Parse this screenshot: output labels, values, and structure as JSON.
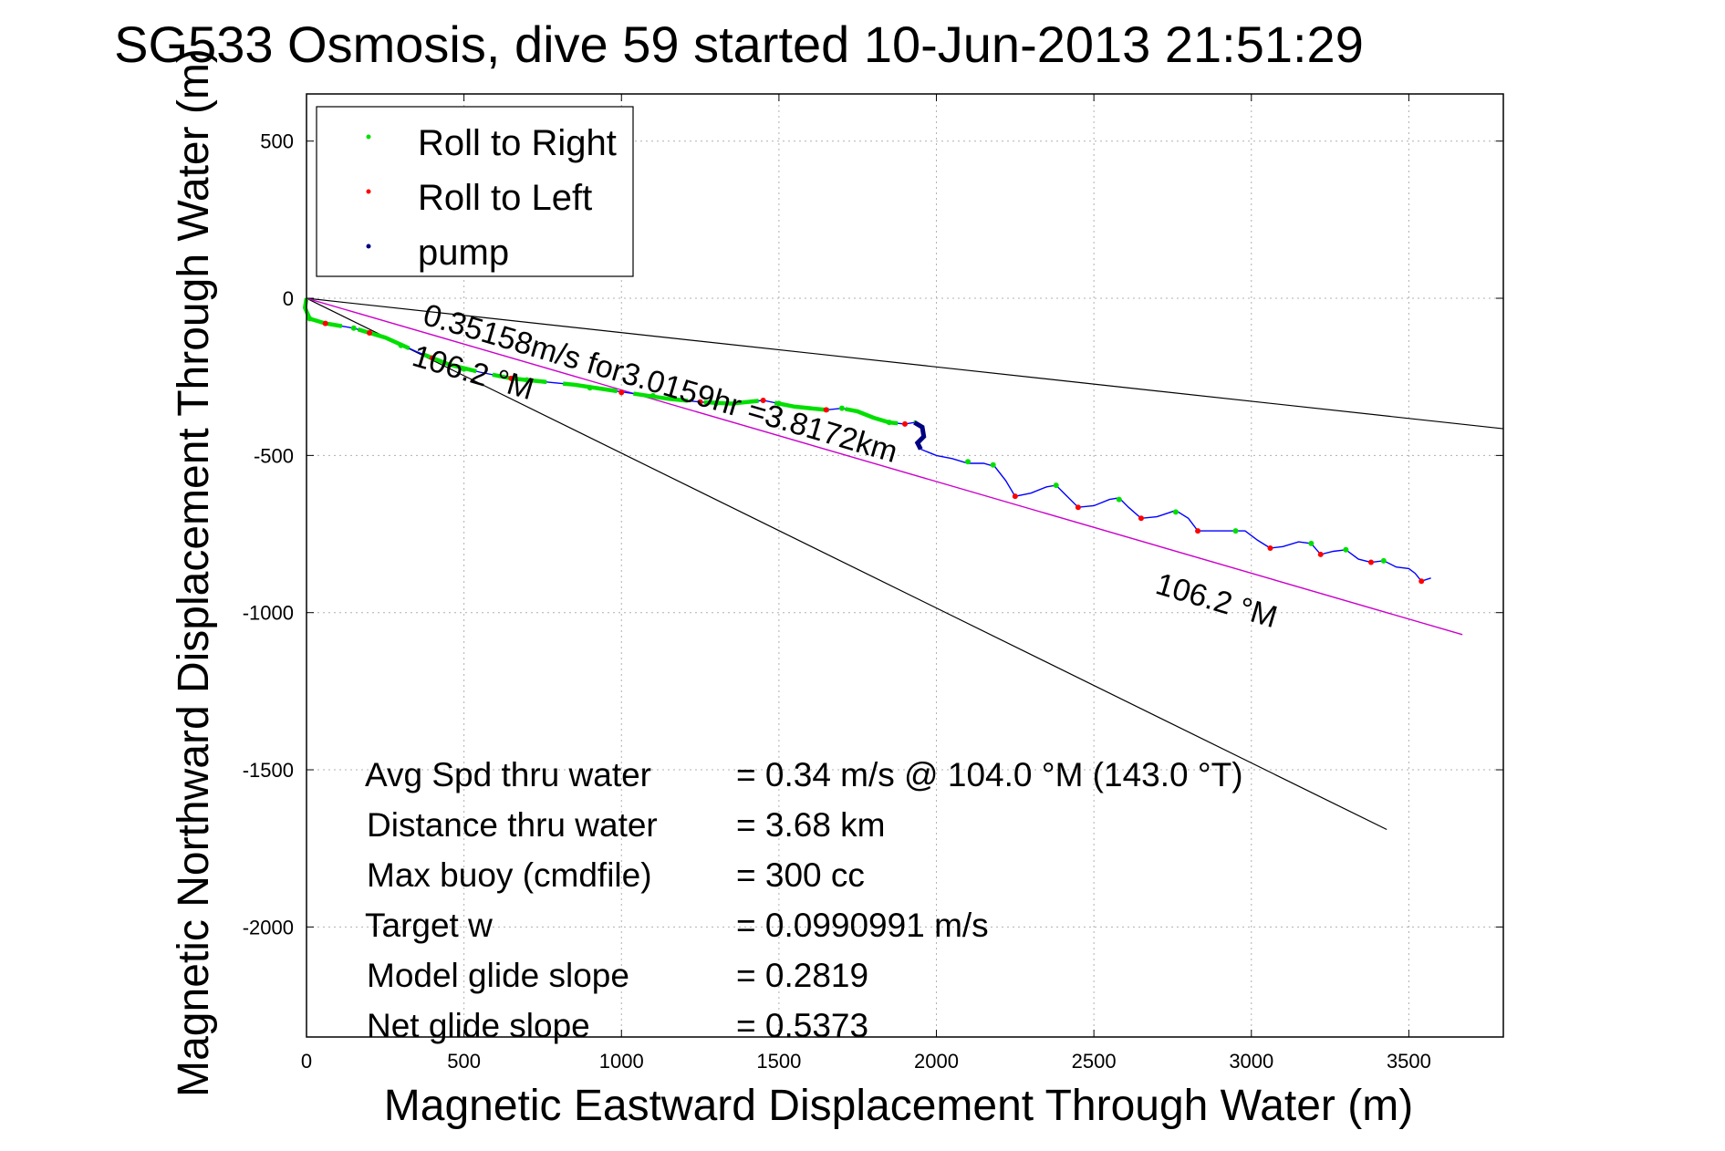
{
  "chart_data": {
    "type": "line",
    "title": "SG533 Osmosis, dive 59 started 10-Jun-2013 21:51:29",
    "xlabel": "Magnetic Eastward Displacement Through Water (m)",
    "ylabel": "Magnetic Northward Displacement Through Water (m)",
    "xlim": [
      0,
      3800
    ],
    "ylim": [
      -2350,
      650
    ],
    "xticks": [
      0,
      500,
      1000,
      1500,
      2000,
      2500,
      3000,
      3500
    ],
    "yticks": [
      500,
      0,
      -500,
      -1000,
      -1500,
      -2000
    ],
    "grid": true,
    "legend": {
      "placement": "top-left",
      "entries": [
        {
          "label": "Roll to Right",
          "color": "#00e000"
        },
        {
          "label": "Roll to Left",
          "color": "#ff0000"
        },
        {
          "label": "pump",
          "color": "#000080"
        }
      ]
    },
    "track": {
      "name": "glider track",
      "color": "#0000ff",
      "points": [
        [
          0,
          0
        ],
        [
          -5,
          -30
        ],
        [
          10,
          -65
        ],
        [
          60,
          -80
        ],
        [
          150,
          -95
        ],
        [
          250,
          -125
        ],
        [
          350,
          -170
        ],
        [
          450,
          -210
        ],
        [
          550,
          -235
        ],
        [
          650,
          -255
        ],
        [
          750,
          -265
        ],
        [
          850,
          -275
        ],
        [
          950,
          -290
        ],
        [
          1050,
          -305
        ],
        [
          1150,
          -320
        ],
        [
          1250,
          -330
        ],
        [
          1350,
          -335
        ],
        [
          1450,
          -325
        ],
        [
          1500,
          -335
        ],
        [
          1550,
          -345
        ],
        [
          1650,
          -355
        ],
        [
          1700,
          -350
        ],
        [
          1750,
          -360
        ],
        [
          1800,
          -380
        ],
        [
          1850,
          -395
        ],
        [
          1900,
          -400
        ],
        [
          1930,
          -395
        ],
        [
          1955,
          -410
        ],
        [
          1960,
          -440
        ],
        [
          1940,
          -460
        ],
        [
          1950,
          -480
        ],
        [
          2000,
          -500
        ],
        [
          2050,
          -510
        ],
        [
          2100,
          -525
        ],
        [
          2150,
          -525
        ],
        [
          2185,
          -535
        ],
        [
          2220,
          -580
        ],
        [
          2250,
          -630
        ],
        [
          2300,
          -620
        ],
        [
          2350,
          -600
        ],
        [
          2380,
          -595
        ],
        [
          2410,
          -625
        ],
        [
          2450,
          -665
        ],
        [
          2500,
          -660
        ],
        [
          2550,
          -640
        ],
        [
          2580,
          -635
        ],
        [
          2610,
          -665
        ],
        [
          2650,
          -700
        ],
        [
          2700,
          -695
        ],
        [
          2760,
          -675
        ],
        [
          2800,
          -700
        ],
        [
          2830,
          -740
        ],
        [
          2880,
          -740
        ],
        [
          2940,
          -740
        ],
        [
          2980,
          -740
        ],
        [
          3020,
          -770
        ],
        [
          3060,
          -795
        ],
        [
          3100,
          -790
        ],
        [
          3150,
          -775
        ],
        [
          3190,
          -780
        ],
        [
          3220,
          -815
        ],
        [
          3260,
          -805
        ],
        [
          3300,
          -800
        ],
        [
          3340,
          -830
        ],
        [
          3380,
          -840
        ],
        [
          3420,
          -835
        ],
        [
          3460,
          -855
        ],
        [
          3500,
          -860
        ],
        [
          3520,
          -875
        ],
        [
          3540,
          -900
        ],
        [
          3570,
          -890
        ]
      ]
    },
    "roll_right_points": [
      [
        10,
        -65
      ],
      [
        150,
        -95
      ],
      [
        300,
        -150
      ],
      [
        500,
        -225
      ],
      [
        700,
        -260
      ],
      [
        900,
        -285
      ],
      [
        1100,
        -310
      ],
      [
        1300,
        -335
      ],
      [
        1500,
        -335
      ],
      [
        1700,
        -350
      ],
      [
        1850,
        -395
      ],
      [
        2100,
        -520
      ],
      [
        2180,
        -530
      ],
      [
        2380,
        -595
      ],
      [
        2580,
        -640
      ],
      [
        2760,
        -680
      ],
      [
        2950,
        -740
      ],
      [
        3190,
        -780
      ],
      [
        3300,
        -800
      ],
      [
        3420,
        -835
      ]
    ],
    "roll_left_points": [
      [
        60,
        -80
      ],
      [
        200,
        -110
      ],
      [
        400,
        -190
      ],
      [
        650,
        -255
      ],
      [
        1000,
        -300
      ],
      [
        1250,
        -330
      ],
      [
        1450,
        -325
      ],
      [
        1650,
        -355
      ],
      [
        1900,
        -400
      ],
      [
        2250,
        -630
      ],
      [
        2450,
        -665
      ],
      [
        2650,
        -700
      ],
      [
        2830,
        -740
      ],
      [
        3060,
        -795
      ],
      [
        3220,
        -815
      ],
      [
        3380,
        -840
      ],
      [
        3540,
        -900
      ]
    ],
    "pump_segment": [
      [
        1930,
        -395
      ],
      [
        1955,
        -410
      ],
      [
        1960,
        -440
      ],
      [
        1940,
        -460
      ],
      [
        1950,
        -480
      ]
    ],
    "reference_lines": [
      {
        "name": "upper heading line",
        "color": "#000000",
        "from": [
          0,
          0
        ],
        "to": [
          3800,
          -415
        ]
      },
      {
        "name": "lower heading line",
        "color": "#000000",
        "from": [
          0,
          0
        ],
        "to": [
          3430,
          -1690
        ]
      },
      {
        "name": "net heading line",
        "color": "#cc00cc",
        "from": [
          0,
          0
        ],
        "to": [
          3670,
          -1070
        ]
      }
    ],
    "annotations": {
      "speed": "0.35158m/s for3.0159hr =3.8172km",
      "heading_upper": "106.2 °M",
      "heading_lower": "106.2 °M"
    },
    "stats": [
      {
        "label": "Avg Spd thru water",
        "value": "=  0.34 m/s @ 104.0 °M (143.0 °T)"
      },
      {
        "label": "Distance thru water",
        "value": "=  3.68 km"
      },
      {
        "label": "Max buoy (cmdfile)",
        "value": "= 300 cc"
      },
      {
        "label": "Target w",
        "value": "= 0.0990991 m/s"
      },
      {
        "label": "Model glide slope",
        "value": "= 0.2819"
      },
      {
        "label": "Net glide slope",
        "value": "= 0.5373"
      }
    ]
  }
}
